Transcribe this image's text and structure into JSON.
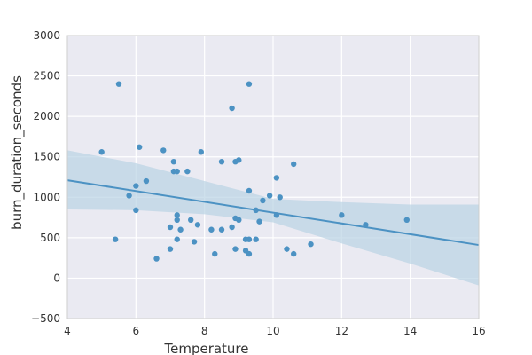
{
  "chart_data": {
    "type": "scatter",
    "xlabel": "Temperature",
    "ylabel": "burn_duration_seconds",
    "xlim": [
      4,
      16
    ],
    "ylim": [
      -500,
      3000
    ],
    "x_ticks": [
      4,
      6,
      8,
      10,
      12,
      14,
      16
    ],
    "y_ticks": [
      -500,
      0,
      500,
      1000,
      1500,
      2000,
      2500,
      3000
    ],
    "x_tick_labels": [
      "4",
      "6",
      "8",
      "10",
      "12",
      "14",
      "16"
    ],
    "y_tick_labels": [
      "−500",
      "0",
      "500",
      "1000",
      "1500",
      "2000",
      "2500",
      "3000"
    ],
    "grid": true,
    "regression": {
      "x": [
        4,
        16
      ],
      "y": [
        1210,
        410
      ],
      "ci_upper": [
        [
          4,
          1580
        ],
        [
          6,
          1420
        ],
        [
          8,
          1200
        ],
        [
          10,
          980
        ],
        [
          12,
          940
        ],
        [
          14,
          910
        ],
        [
          16,
          910
        ]
      ],
      "ci_lower": [
        [
          4,
          850
        ],
        [
          6,
          840
        ],
        [
          8,
          790
        ],
        [
          10,
          690
        ],
        [
          12,
          430
        ],
        [
          14,
          180
        ],
        [
          16,
          -90
        ]
      ]
    },
    "points": [
      [
        5.0,
        1560
      ],
      [
        5.4,
        480
      ],
      [
        5.5,
        2400
      ],
      [
        5.8,
        1020
      ],
      [
        6.0,
        1140
      ],
      [
        6.0,
        840
      ],
      [
        6.1,
        1620
      ],
      [
        6.3,
        1200
      ],
      [
        6.6,
        240
      ],
      [
        6.8,
        1580
      ],
      [
        7.0,
        360
      ],
      [
        7.0,
        630
      ],
      [
        7.1,
        1440
      ],
      [
        7.1,
        1320
      ],
      [
        7.2,
        1320
      ],
      [
        7.2,
        780
      ],
      [
        7.2,
        720
      ],
      [
        7.2,
        480
      ],
      [
        7.3,
        600
      ],
      [
        7.5,
        1320
      ],
      [
        7.6,
        720
      ],
      [
        7.7,
        450
      ],
      [
        7.8,
        660
      ],
      [
        7.9,
        1560
      ],
      [
        8.2,
        600
      ],
      [
        8.3,
        300
      ],
      [
        8.5,
        1440
      ],
      [
        8.5,
        600
      ],
      [
        8.8,
        2100
      ],
      [
        8.8,
        630
      ],
      [
        8.9,
        1440
      ],
      [
        8.9,
        740
      ],
      [
        8.9,
        360
      ],
      [
        9.0,
        1460
      ],
      [
        9.0,
        720
      ],
      [
        9.2,
        480
      ],
      [
        9.2,
        340
      ],
      [
        9.3,
        2400
      ],
      [
        9.3,
        1080
      ],
      [
        9.3,
        480
      ],
      [
        9.3,
        300
      ],
      [
        9.5,
        840
      ],
      [
        9.5,
        480
      ],
      [
        9.6,
        700
      ],
      [
        9.7,
        960
      ],
      [
        9.9,
        1020
      ],
      [
        10.1,
        1240
      ],
      [
        10.1,
        780
      ],
      [
        10.2,
        1000
      ],
      [
        10.4,
        360
      ],
      [
        10.6,
        1410
      ],
      [
        10.6,
        300
      ],
      [
        11.1,
        420
      ],
      [
        12.0,
        780
      ],
      [
        12.7,
        660
      ],
      [
        13.9,
        720
      ]
    ],
    "colors": {
      "background": "#eaeaf2",
      "grid": "#ffffff",
      "point": "#4c92c3",
      "line": "#4c92c3",
      "ci_band": "#b9d3e4"
    }
  }
}
